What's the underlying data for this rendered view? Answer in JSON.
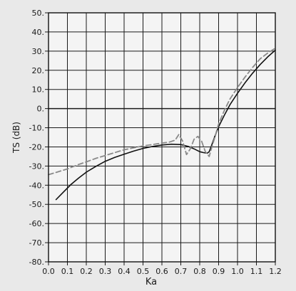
{
  "chart_data": {
    "type": "line",
    "title": "",
    "xlabel": "Ka",
    "ylabel": "TS (dB)",
    "xlim": [
      0.0,
      1.2
    ],
    "ylim": [
      -80,
      50
    ],
    "grid": true,
    "legend": "none",
    "x_ticks": [
      "0.0",
      "0.1",
      "0.2",
      "0.3",
      "0.4",
      "0.5",
      "0.6",
      "0.7",
      "0.8",
      "0.9",
      "1.0",
      "1.1",
      "1.2"
    ],
    "y_ticks": [
      "50.",
      "40.",
      "30.",
      "20.",
      "10.",
      "0.",
      "-10.",
      "-20.",
      "-30.",
      "-40.",
      "-50.",
      "-60.",
      "-70.",
      "-80."
    ],
    "series": [
      {
        "style": "solid",
        "color": "#111111",
        "x": [
          0.04,
          0.08,
          0.12,
          0.16,
          0.2,
          0.25,
          0.3,
          0.35,
          0.4,
          0.45,
          0.5,
          0.55,
          0.6,
          0.65,
          0.7,
          0.74,
          0.77,
          0.8,
          0.82,
          0.84,
          0.85,
          0.86,
          0.88,
          0.9,
          0.93,
          0.96,
          1.0,
          1.04,
          1.08,
          1.12,
          1.16,
          1.2
        ],
        "y": [
          -47.5,
          -43.5,
          -39.5,
          -36.2,
          -33.2,
          -30.2,
          -27.5,
          -25.5,
          -23.8,
          -22.2,
          -20.8,
          -19.8,
          -19.0,
          -18.6,
          -18.8,
          -19.8,
          -21.0,
          -22.5,
          -23.0,
          -23.3,
          -22.5,
          -20.0,
          -14.5,
          -9.5,
          -3.5,
          2.0,
          8.0,
          13.5,
          18.5,
          23.0,
          27.0,
          30.5
        ]
      },
      {
        "style": "dashed",
        "color": "#8a8a8a",
        "x": [
          0.0,
          0.05,
          0.1,
          0.15,
          0.2,
          0.25,
          0.3,
          0.35,
          0.4,
          0.45,
          0.5,
          0.55,
          0.6,
          0.64,
          0.67,
          0.69,
          0.71,
          0.73,
          0.75,
          0.77,
          0.79,
          0.81,
          0.83,
          0.85,
          0.86,
          0.88,
          0.9,
          0.93,
          0.96,
          1.0,
          1.04,
          1.08,
          1.12,
          1.16,
          1.2
        ],
        "y": [
          -34.5,
          -33.0,
          -31.5,
          -29.5,
          -27.8,
          -26.0,
          -24.5,
          -23.0,
          -21.5,
          -20.5,
          -19.5,
          -18.8,
          -18.0,
          -17.5,
          -16.5,
          -13.5,
          -17.0,
          -24.0,
          -21.0,
          -16.0,
          -14.5,
          -17.0,
          -22.5,
          -25.0,
          -21.5,
          -15.0,
          -8.0,
          -1.0,
          5.0,
          11.0,
          16.5,
          21.5,
          26.0,
          29.0,
          31.5
        ]
      }
    ]
  }
}
